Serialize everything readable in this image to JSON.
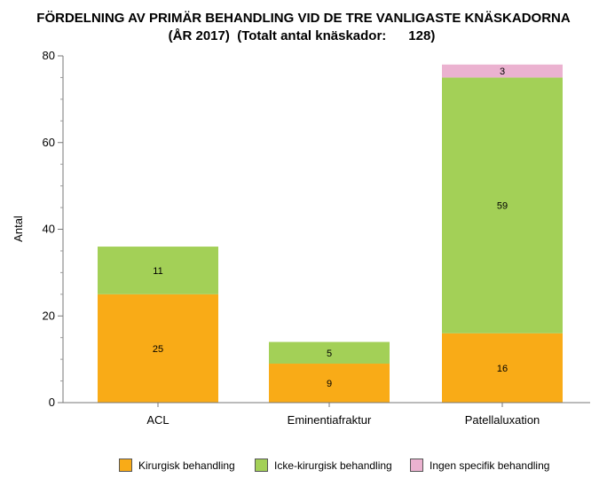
{
  "chart_data": {
    "type": "bar",
    "stacked": true,
    "title": "FÖRDELNING AV PRIMÄR BEHANDLING VID DE TRE VANLIGASTE KNÄSKADORNA",
    "subtitle": "(ÅR 2017)  (Totalt antal knäskador:      128)",
    "xlabel": "",
    "ylabel": "Antal",
    "ylim": [
      0,
      80
    ],
    "yticks": [
      0,
      20,
      40,
      60,
      80
    ],
    "categories": [
      "ACL",
      "Eminentiafraktur",
      "Patellaluxation"
    ],
    "series": [
      {
        "name": "Kirurgisk behandling",
        "color": "#F9AB17",
        "values": [
          25,
          9,
          16
        ]
      },
      {
        "name": "Icke-kirurgisk behandling",
        "color": "#A3D057",
        "values": [
          11,
          5,
          59
        ]
      },
      {
        "name": "Ingen specifik behandling",
        "color": "#EBB2D0",
        "values": [
          0,
          0,
          3
        ]
      }
    ],
    "legend_position": "bottom",
    "grid": false
  }
}
